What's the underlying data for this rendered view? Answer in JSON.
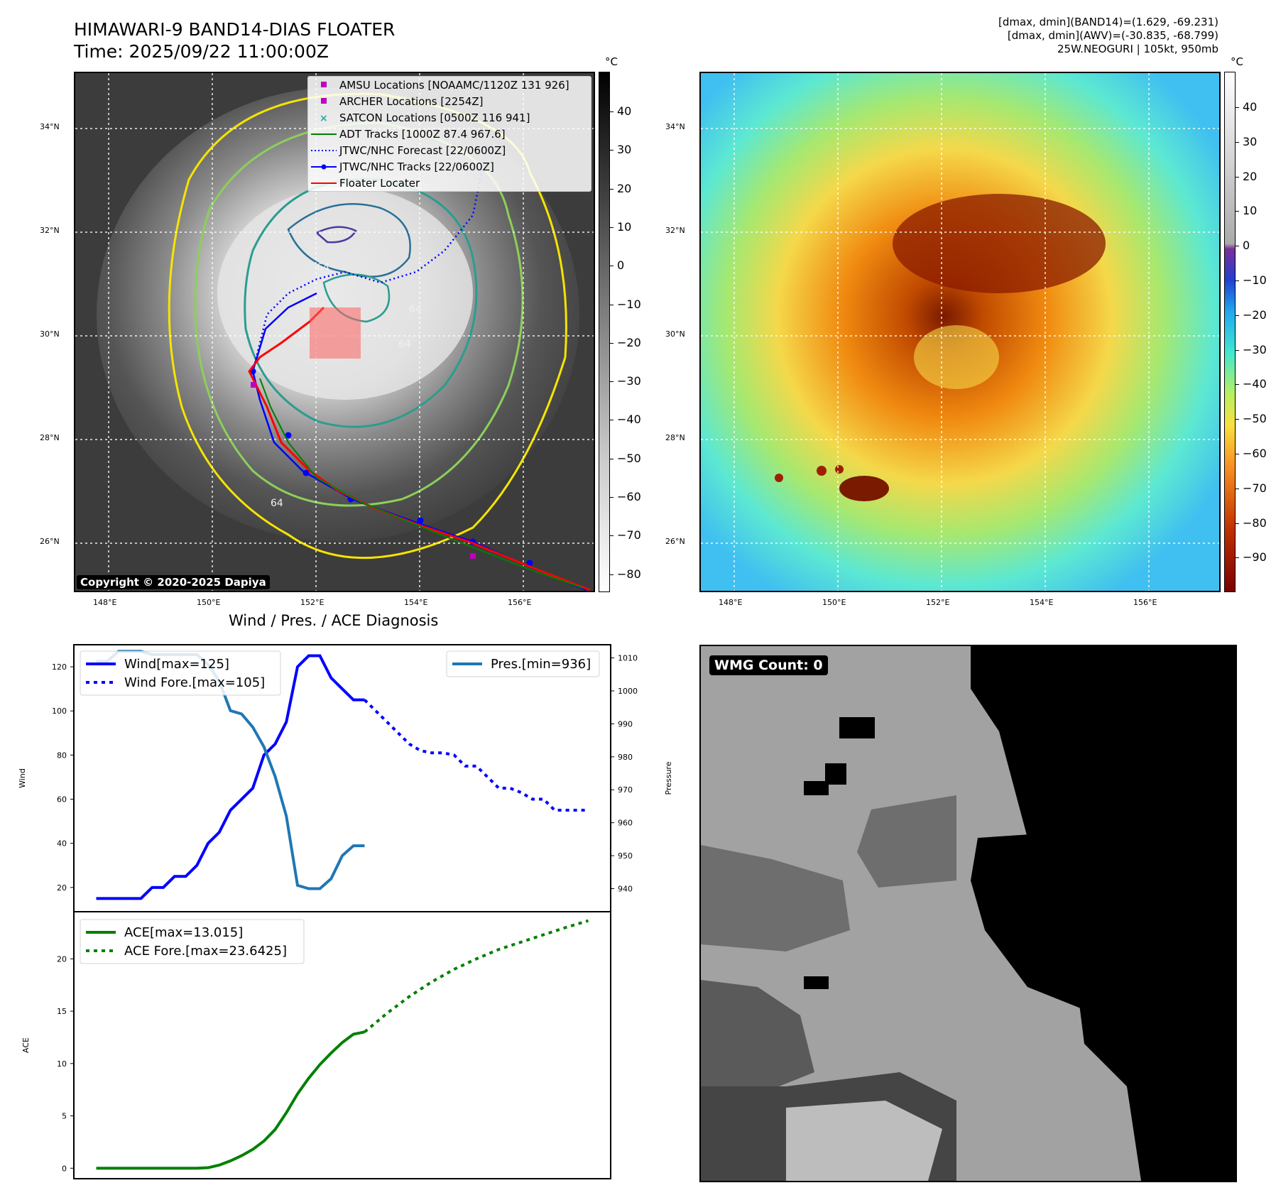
{
  "header": {
    "title_line1": "HIMAWARI-9 BAND14-DIAS FLOATER",
    "title_line2": "Time: 2025/09/22 11:00:00Z",
    "info_line1": "[dmax, dmin](BAND14)=(1.629, -69.231)",
    "info_line2": "[dmax, dmin](AWV)=(-30.835, -68.799)",
    "info_line3": "25W.NEOGURI | 105kt, 950mb"
  },
  "map": {
    "lat_labels": [
      "34°N",
      "32°N",
      "30°N",
      "28°N",
      "26°N"
    ],
    "lon_labels": [
      "148°E",
      "150°E",
      "152°E",
      "154°E",
      "156°E"
    ],
    "copyright": "Copyright © 2020-2025 Dapiya",
    "contour_labels": [
      "64",
      "64",
      "64",
      "64"
    ],
    "legend": [
      {
        "label": "AMSU Locations [NOAAMC/1120Z 131 926]",
        "color": "#c000c0",
        "style": "square"
      },
      {
        "label": "ARCHER Locations [2254Z]",
        "color": "#c000c0",
        "style": "square"
      },
      {
        "label": "SATCON Locations [0500Z 116 941]",
        "color": "#20b0b0",
        "style": "cross"
      },
      {
        "label": "ADT Tracks [1000Z 87.4 967.6]",
        "color": "#008000",
        "style": "line"
      },
      {
        "label": "JTWC/NHC Forecast [22/0600Z]",
        "color": "#0000ff",
        "style": "dotted"
      },
      {
        "label": "JTWC/NHC Tracks [22/0600Z]",
        "color": "#0000ff",
        "style": "line-dot"
      },
      {
        "label": "Floater Locater",
        "color": "#ff0000",
        "style": "line"
      }
    ]
  },
  "colorbars": {
    "unit": "°C",
    "gray_ticks": [
      "40",
      "30",
      "20",
      "10",
      "0",
      "−10",
      "−20",
      "−30",
      "−40",
      "−50",
      "−60",
      "−70",
      "−80"
    ],
    "color_ticks": [
      "40",
      "30",
      "20",
      "10",
      "0",
      "−10",
      "−20",
      "−30",
      "−40",
      "−50",
      "−60",
      "−70",
      "−80",
      "−90"
    ]
  },
  "diag": {
    "title": "Wind / Pres. / ACE Diagnosis",
    "wmg": "WMG Count: 0"
  },
  "chart_data": [
    {
      "type": "line",
      "title": "Wind / Pres. / ACE Diagnosis",
      "ylabel": "Wind",
      "y2label": "Pressure",
      "ylim": [
        9,
        130
      ],
      "y2lim": [
        933,
        1014
      ],
      "yticks": [
        20,
        40,
        60,
        80,
        100,
        120
      ],
      "y2ticks": [
        940,
        950,
        960,
        970,
        980,
        990,
        1000,
        1010
      ],
      "series": [
        {
          "name": "Wind[max=125]",
          "color": "#0000ff",
          "style": "solid",
          "axis": "left",
          "x": [
            0,
            1,
            2,
            3,
            4,
            5,
            6,
            7,
            8,
            9,
            10,
            11,
            12,
            13,
            14,
            15,
            16,
            17,
            18,
            19,
            20,
            21,
            22,
            23,
            24
          ],
          "values": [
            15,
            15,
            15,
            15,
            15,
            20,
            20,
            25,
            25,
            30,
            40,
            45,
            55,
            60,
            65,
            80,
            85,
            95,
            120,
            125,
            125,
            115,
            110,
            105,
            105
          ]
        },
        {
          "name": "Wind Fore.[max=105]",
          "color": "#0000ff",
          "style": "dotted",
          "axis": "left",
          "x": [
            24,
            25,
            26,
            27,
            28,
            29,
            30,
            31,
            32,
            33,
            34,
            35,
            36,
            37,
            38,
            39,
            40,
            41,
            42,
            43,
            44
          ],
          "values": [
            105,
            100,
            95,
            90,
            85,
            82,
            81,
            81,
            80,
            75,
            75,
            70,
            65,
            65,
            63,
            60,
            60,
            55,
            55,
            55,
            55
          ]
        },
        {
          "name": "Pres.[min=936]",
          "color": "#1f77b4",
          "style": "solid",
          "axis": "right",
          "x": [
            0,
            1,
            2,
            3,
            4,
            5,
            6,
            7,
            8,
            9,
            10,
            11,
            12,
            13,
            14,
            15,
            16,
            17,
            18,
            19,
            20,
            21,
            22,
            23,
            24
          ],
          "values": [
            1009,
            1009,
            1012,
            1012,
            1012,
            1011,
            1011,
            1011,
            1011,
            1011,
            1008,
            1003,
            994,
            993,
            989,
            983,
            974,
            962,
            941,
            940,
            940,
            943,
            950,
            953,
            953
          ]
        }
      ]
    },
    {
      "type": "line",
      "ylabel": "ACE",
      "ylim": [
        -1,
        24.5
      ],
      "yticks": [
        0,
        5,
        10,
        15,
        20
      ],
      "series": [
        {
          "name": "ACE[max=13.015]",
          "color": "#008000",
          "style": "solid",
          "x": [
            0,
            1,
            2,
            3,
            4,
            5,
            6,
            7,
            8,
            9,
            10,
            11,
            12,
            13,
            14,
            15,
            16,
            17,
            18,
            19,
            20,
            21,
            22,
            23,
            24
          ],
          "values": [
            0,
            0,
            0,
            0,
            0,
            0,
            0,
            0,
            0,
            0,
            0.05,
            0.3,
            0.7,
            1.2,
            1.8,
            2.6,
            3.7,
            5.3,
            7.1,
            8.6,
            9.9,
            11.0,
            12.0,
            12.8,
            13.015
          ]
        },
        {
          "name": "ACE Fore.[max=23.6425]",
          "color": "#008000",
          "style": "dotted",
          "x": [
            24,
            26,
            28,
            30,
            32,
            34,
            36,
            38,
            40,
            42,
            44
          ],
          "values": [
            13.015,
            14.8,
            16.4,
            17.8,
            19.0,
            20.0,
            20.9,
            21.6,
            22.3,
            23.0,
            23.6425
          ]
        }
      ]
    }
  ]
}
